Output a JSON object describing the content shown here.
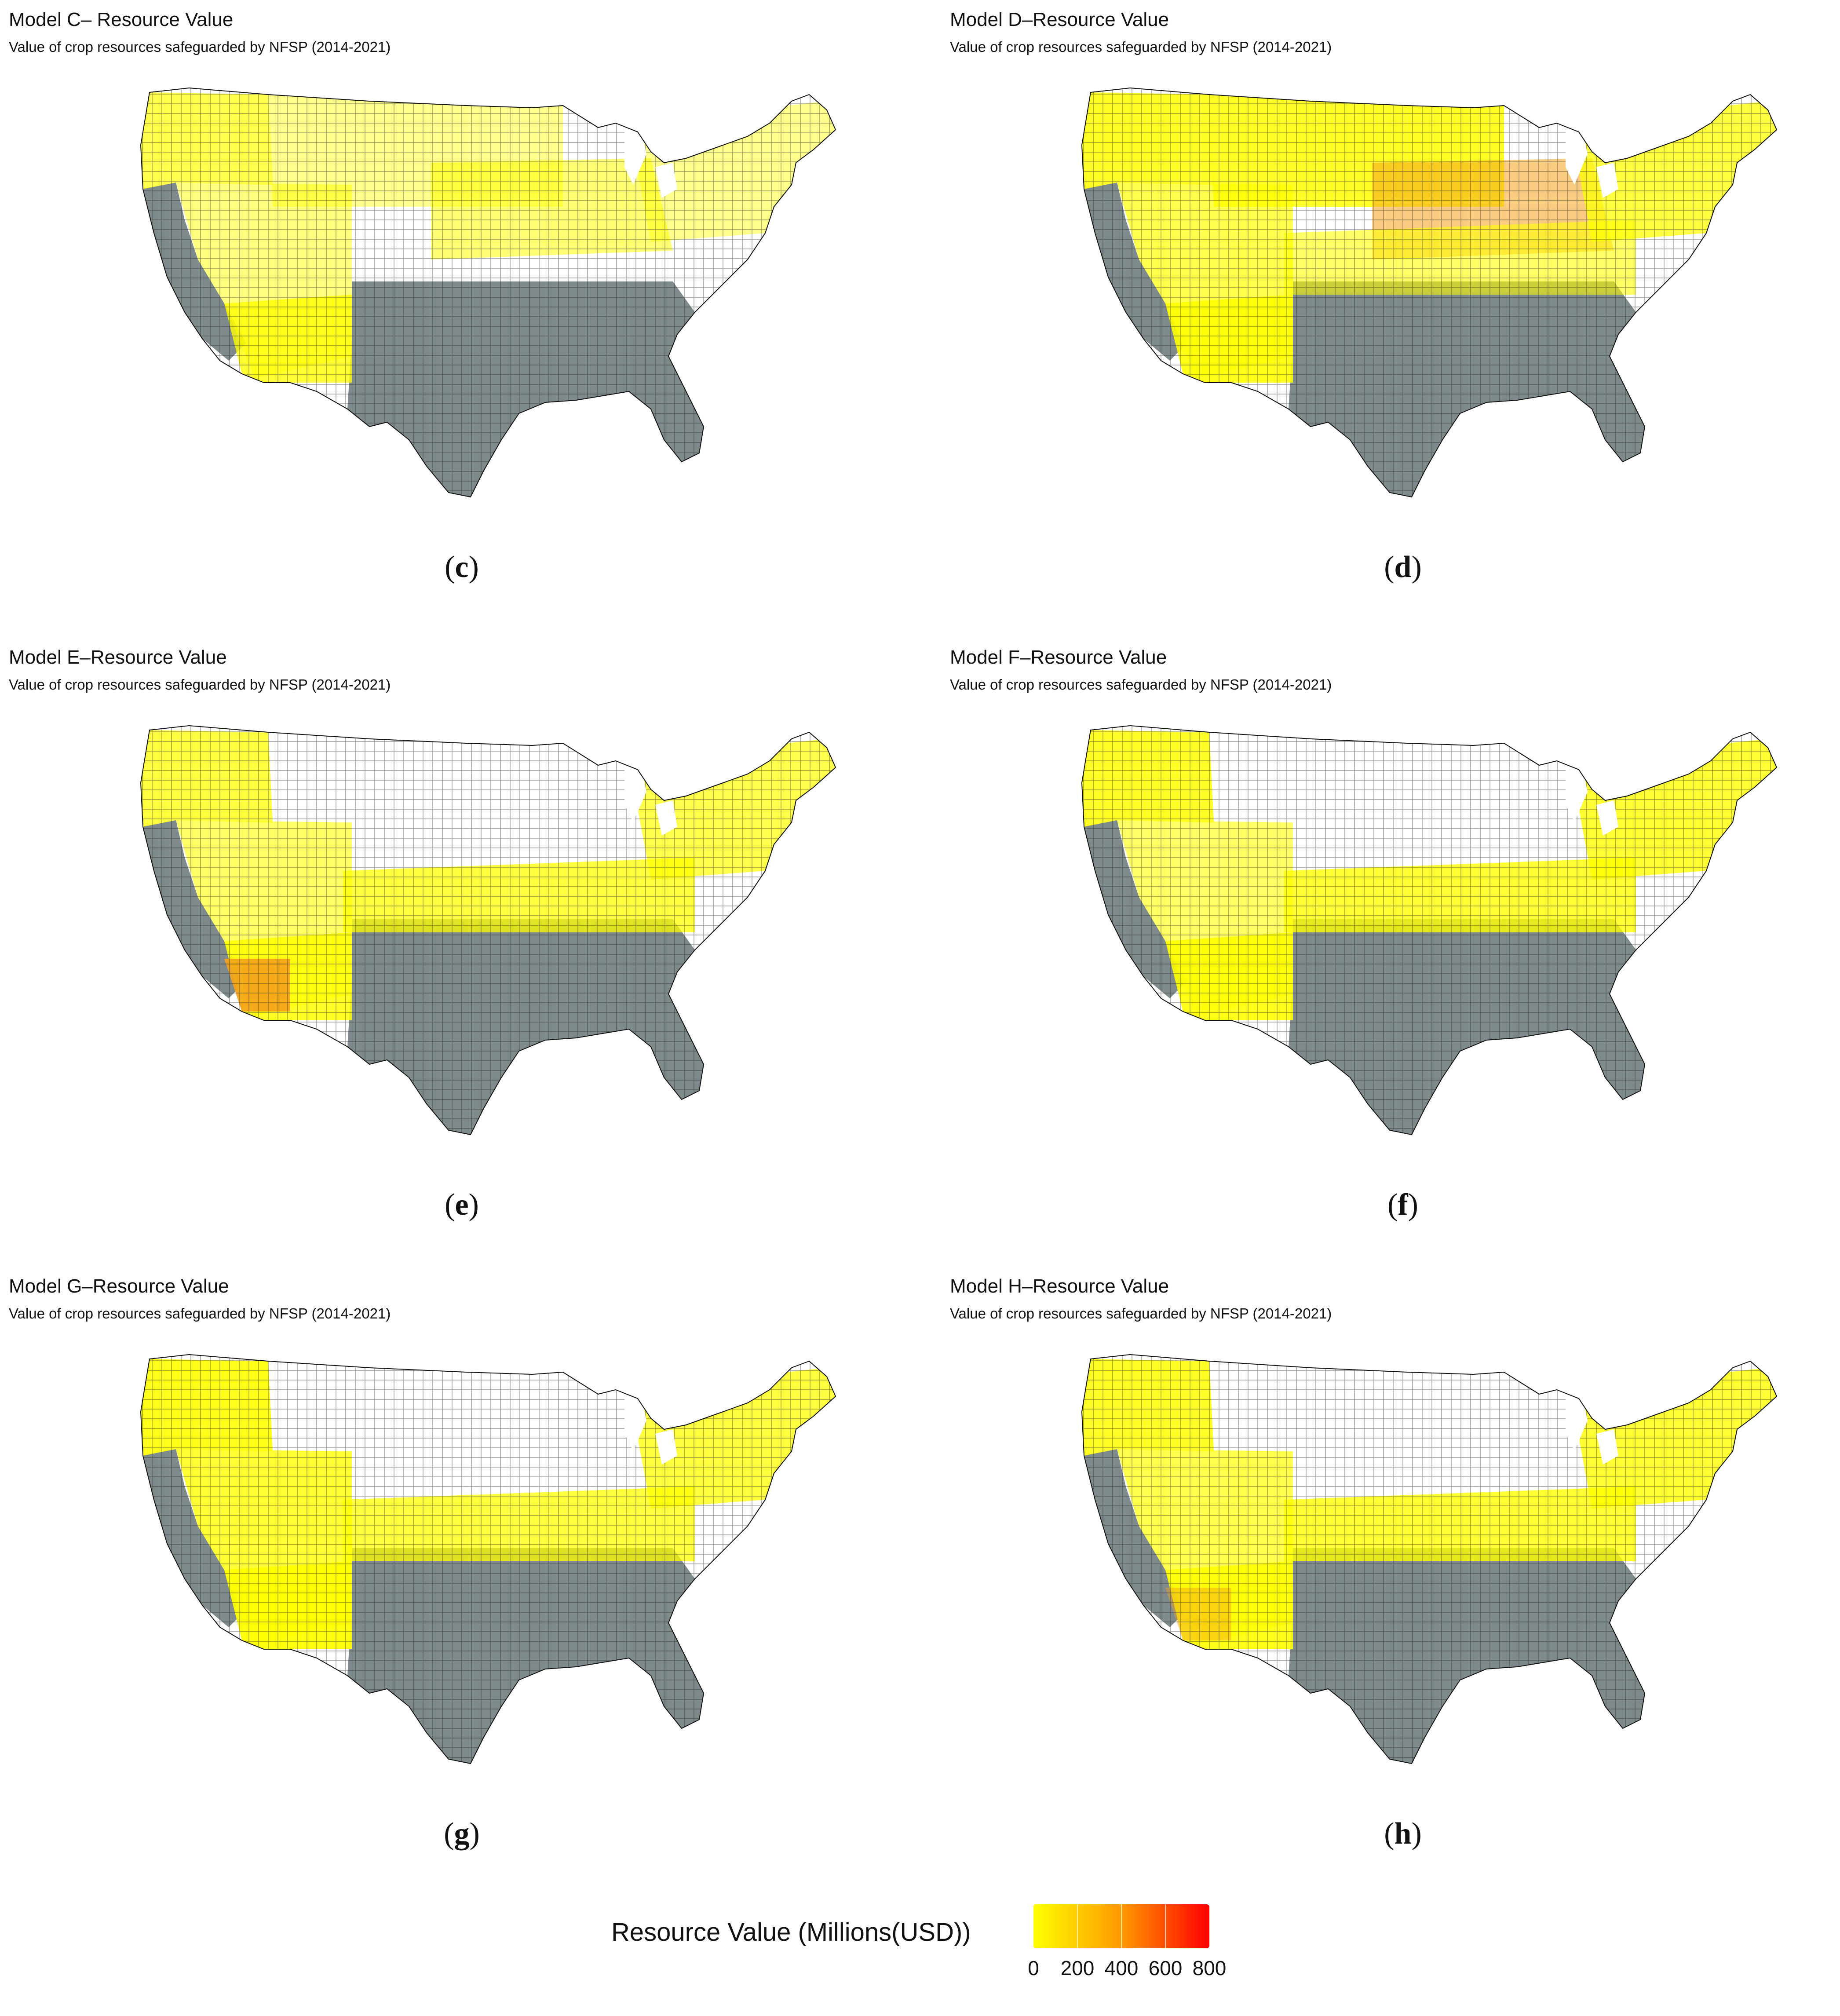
{
  "panels": [
    {
      "id": "c",
      "title": "Model C– Resource Value",
      "subtitle": "Value of crop resources safeguarded by NFSP (2014-2021)",
      "label_open": "(",
      "label_letter": "c",
      "label_close": ")",
      "pattern": "c"
    },
    {
      "id": "d",
      "title": "Model D–Resource Value",
      "subtitle": "Value of crop resources safeguarded by NFSP (2014-2021)",
      "label_open": "(",
      "label_letter": "d",
      "label_close": ")",
      "pattern": "d"
    },
    {
      "id": "e",
      "title": "Model E–Resource Value",
      "subtitle": "Value of crop resources safeguarded by NFSP (2014-2021)",
      "label_open": "(",
      "label_letter": "e",
      "label_close": ")",
      "pattern": "e"
    },
    {
      "id": "f",
      "title": "Model F–Resource Value",
      "subtitle": "Value of crop resources safeguarded by NFSP (2014-2021)",
      "label_open": "(",
      "label_letter": "f",
      "label_close": ")",
      "pattern": "f"
    },
    {
      "id": "g",
      "title": "Model G–Resource Value",
      "subtitle": "Value of crop resources safeguarded by NFSP (2014-2021)",
      "label_open": "(",
      "label_letter": "g",
      "label_close": ")",
      "pattern": "g"
    },
    {
      "id": "h",
      "title": "Model H–Resource Value",
      "subtitle": "Value of crop resources safeguarded by NFSP (2014-2021)",
      "label_open": "(",
      "label_letter": "h",
      "label_close": ")",
      "pattern": "h"
    }
  ],
  "legend": {
    "title": "Resource Value (Millions(USD))",
    "ticks": [
      "0",
      "200",
      "400",
      "600",
      "800"
    ],
    "min": 0,
    "max": 800,
    "color_low": "#ffff00",
    "color_mid": "#ff9900",
    "color_high": "#ff0000"
  },
  "colors": {
    "no_data_dark": "#7f8a8c",
    "no_data_light": "#c6c6c6",
    "zero": "#ffffff",
    "county_border": "#222222"
  }
}
